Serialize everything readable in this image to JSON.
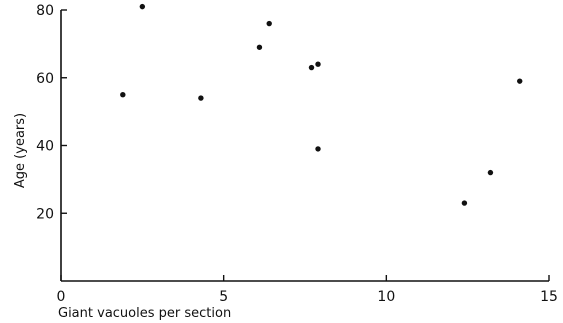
{
  "chart_data": {
    "type": "scatter",
    "title": "",
    "xlabel": "Giant vacuoles per section",
    "ylabel": "Age (years)",
    "xlim": [
      0,
      15
    ],
    "ylim": [
      0,
      80
    ],
    "x_ticks": [
      "0",
      "5",
      "10",
      "15"
    ],
    "y_ticks": [
      "20",
      "40",
      "60",
      "80"
    ],
    "grid": false,
    "legend": "none",
    "points": [
      {
        "x": 1.9,
        "y": 55
      },
      {
        "x": 2.5,
        "y": 81
      },
      {
        "x": 4.3,
        "y": 54
      },
      {
        "x": 6.1,
        "y": 69
      },
      {
        "x": 6.4,
        "y": 76
      },
      {
        "x": 7.7,
        "y": 63
      },
      {
        "x": 7.9,
        "y": 64
      },
      {
        "x": 7.9,
        "y": 39
      },
      {
        "x": 12.4,
        "y": 23
      },
      {
        "x": 13.2,
        "y": 32
      },
      {
        "x": 14.1,
        "y": 59
      }
    ],
    "point_color": "#111111"
  }
}
